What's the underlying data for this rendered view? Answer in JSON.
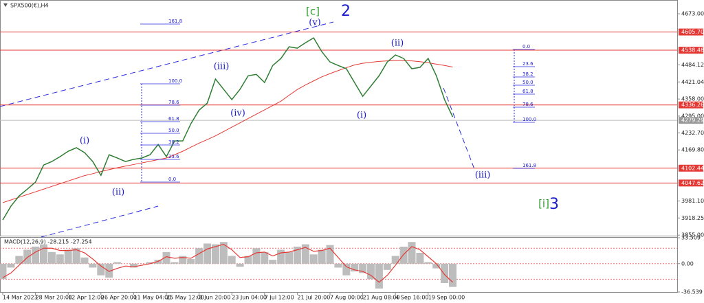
{
  "chart_data": {
    "type": "line",
    "title": "SPX500(€),H4",
    "color": "#2e7d32",
    "categories": [
      "14 Mar 2023",
      null,
      null,
      null,
      "28 Mar 20:00",
      null,
      null,
      null,
      "12 Apr 12:00",
      null,
      null,
      null,
      "26 Apr 20:00",
      null,
      null,
      null,
      "11 May 04:00",
      null,
      null,
      null,
      "25 May 12:00",
      null,
      null,
      null,
      "8 Jun 20:00",
      null,
      null,
      null,
      "23 Jun 04:00",
      null,
      null,
      null,
      "7 Jul 12:00",
      null,
      null,
      null,
      "21 Jul 20:00",
      null,
      null,
      null,
      "7 Aug 00:00",
      null,
      null,
      null,
      "21 Aug 08:00",
      null,
      null,
      null,
      "4 Sep 16:00",
      null,
      null,
      null,
      "19 Sep 00:00",
      null,
      null,
      null
    ],
    "values": [
      3911,
      3962,
      4000,
      4025,
      4051,
      4114,
      4127,
      4145,
      4165,
      4178,
      4160,
      4127,
      4076,
      4152,
      4140,
      4127,
      4135,
      4140,
      4152,
      4190,
      4145,
      4203,
      4203,
      4267,
      4317,
      4343,
      4432,
      4394,
      4356,
      4394,
      4444,
      4449,
      4419,
      4482,
      4508,
      4551,
      4546,
      4566,
      4584,
      4533,
      4495,
      4482,
      4470,
      4419,
      4368,
      4406,
      4444,
      4495,
      4521,
      4508,
      4470,
      4475,
      4508,
      4444,
      4356,
      4292
    ],
    "ma": {
      "color": "#e53935",
      "values": [
        3975,
        3985,
        3995,
        4005,
        4015,
        4025,
        4035,
        4045,
        4055,
        4065,
        4075,
        4082,
        4090,
        4097,
        4104,
        4110,
        4116,
        4122,
        4128,
        4134,
        4140,
        4152,
        4165,
        4180,
        4195,
        4208,
        4222,
        4238,
        4254,
        4270,
        4286,
        4302,
        4318,
        4334,
        4350,
        4372,
        4393,
        4410,
        4425,
        4440,
        4452,
        4463,
        4474,
        4484,
        4490,
        4494,
        4497,
        4499,
        4500,
        4500,
        4499,
        4496,
        4492,
        4487,
        4482,
        4476
      ]
    },
    "ylim": [
      3853,
      4724
    ],
    "yticks": [
      {
        "value": 4673,
        "label": "4673.00"
      },
      {
        "value": 4484.12,
        "label": "4484.12"
      },
      {
        "value": 4421.04,
        "label": "4421.04"
      },
      {
        "value": 4358,
        "label": "4358.00"
      },
      {
        "value": 4295,
        "label": "4295.00"
      },
      {
        "value": 4232.7,
        "label": "4232.70"
      },
      {
        "value": 4169.8,
        "label": "4169.80"
      },
      {
        "value": 3981.1,
        "label": "3981.10"
      },
      {
        "value": 3918.25,
        "label": "3918.25"
      },
      {
        "value": 3855,
        "label": "3855.00"
      }
    ],
    "hlines": [
      {
        "value": 4605.7,
        "label": "4605.70"
      },
      {
        "value": 4538.48,
        "label": "4538.48"
      },
      {
        "value": 4336.26,
        "label": "4336.26"
      },
      {
        "value": 4102.44,
        "label": "4102.44"
      },
      {
        "value": 4047.62,
        "label": "4047.62"
      }
    ],
    "last": {
      "value": 4279.29,
      "label": "4279.29"
    },
    "waves": [
      {
        "text": "(i)",
        "color": "#1a1acd"
      },
      {
        "text": "(ii)",
        "color": "#1a1acd"
      },
      {
        "text": "(iii)",
        "color": "#1a1acd"
      },
      {
        "text": "(iv)",
        "color": "#1a1acd"
      },
      {
        "text": "(v)",
        "color": "#1a1acd"
      },
      {
        "text": "(i)",
        "color": "#1a1acd"
      },
      {
        "text": "(ii)",
        "color": "#1a1acd"
      },
      {
        "text": "(iii)",
        "color": "#1a1acd"
      },
      {
        "text": "[c]",
        "color": "#2e9b2e"
      },
      {
        "text": "2",
        "color": "#1a1acd"
      },
      {
        "text": "[i]",
        "color": "#2e9b2e"
      },
      {
        "text": "3",
        "color": "#1a1acd"
      }
    ],
    "fib_left": [
      "161.8",
      "100.0",
      "78.6",
      "61.8",
      "50.0",
      "38.2",
      "23.6",
      "0.0"
    ],
    "fib_right": [
      "0.0",
      "23.6",
      "38.2",
      "50.0",
      "61.8",
      "78.6",
      "100.0",
      "161.8"
    ],
    "macd": {
      "label": "MACD(12,26,9) -28.215 -27.254",
      "ylim": [
        -36.539,
        33.509
      ],
      "yticks": [
        33.509,
        {
          "value": 0,
          "label": "0.00"
        },
        -36.539
      ],
      "levels": [
        20,
        0,
        -20
      ],
      "values": [
        -20,
        -5,
        10,
        18,
        22,
        25,
        15,
        12,
        18,
        20,
        8,
        -5,
        -15,
        -18,
        2,
        0,
        -5,
        0,
        2,
        5,
        15,
        2,
        10,
        6,
        20,
        26,
        25,
        28,
        10,
        -4,
        10,
        20,
        15,
        5,
        18,
        15,
        22,
        25,
        12,
        18,
        24,
        -5,
        -15,
        -10,
        -12,
        -20,
        -32,
        -8,
        10,
        22,
        28,
        14,
        2,
        -6,
        -25,
        -30
      ],
      "signal": [
        -18,
        -12,
        -2,
        8,
        15,
        20,
        20,
        17,
        17,
        18,
        14,
        6,
        -3,
        -10,
        -6,
        -3,
        -4,
        -2,
        0,
        3,
        9,
        7,
        8,
        7,
        13,
        19,
        22,
        25,
        18,
        8,
        9,
        14,
        15,
        10,
        14,
        15,
        18,
        21,
        16,
        17,
        20,
        8,
        -4,
        -8,
        -10,
        -15,
        -24,
        -15,
        -2,
        12,
        22,
        18,
        9,
        0,
        -14,
        -24
      ]
    }
  }
}
